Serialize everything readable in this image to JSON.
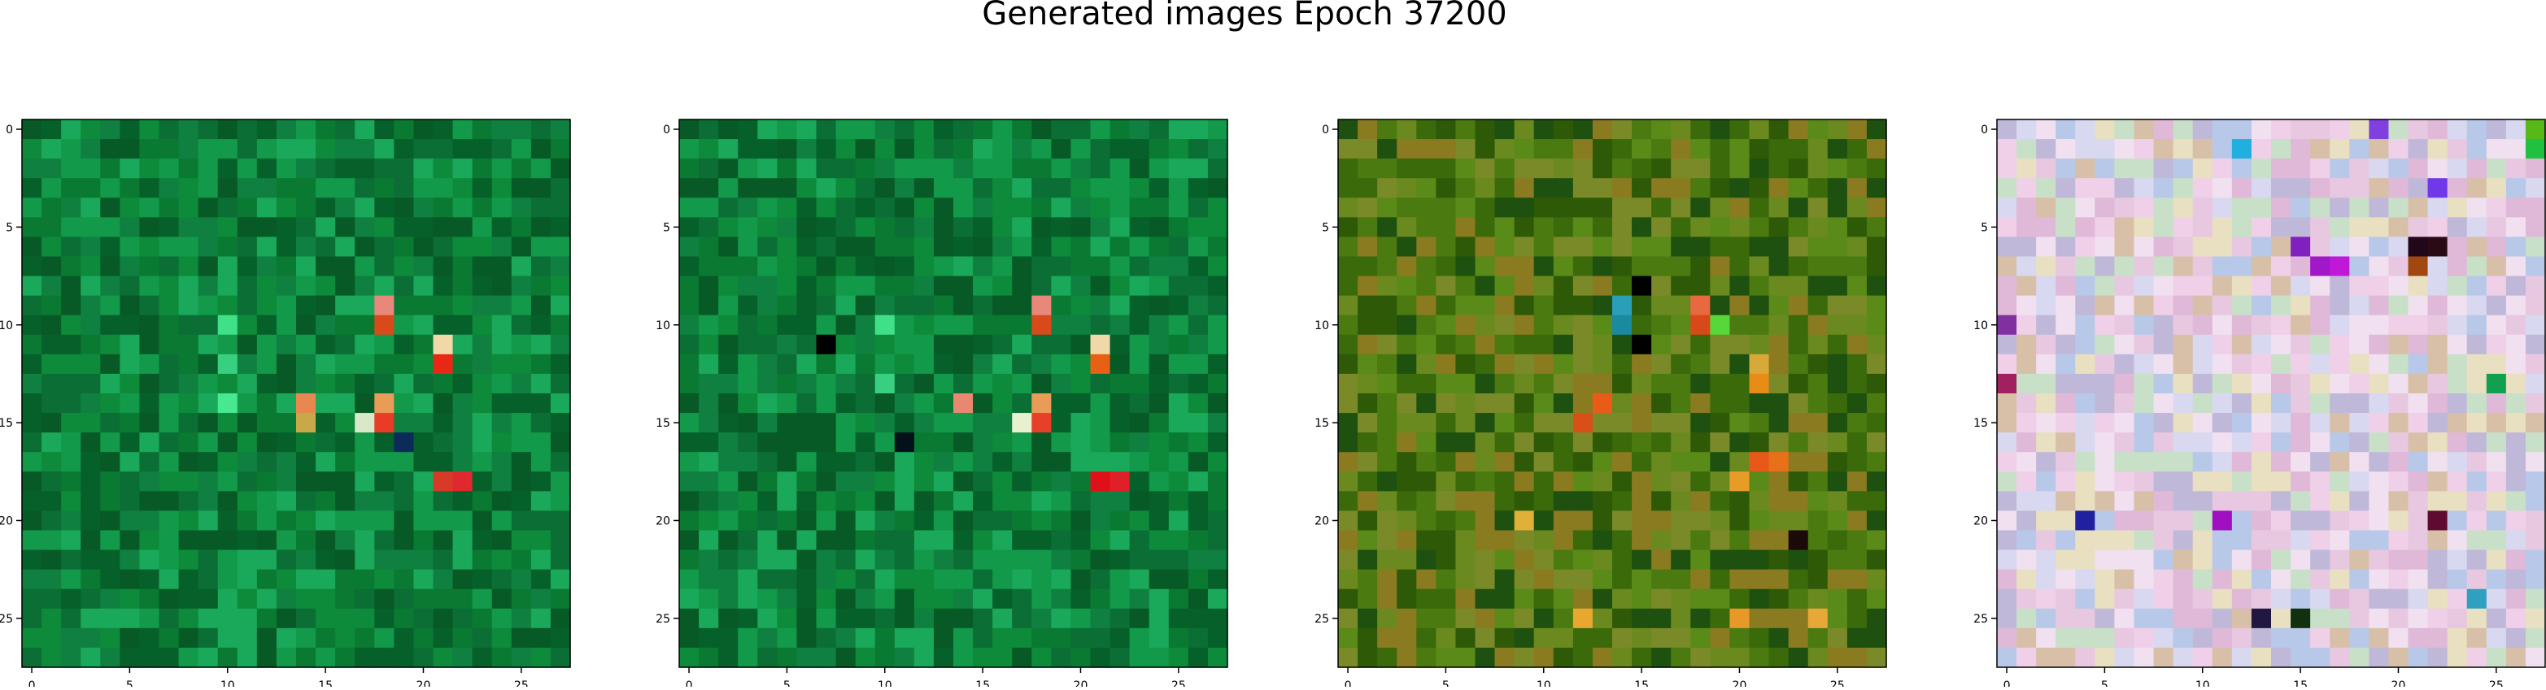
{
  "figure": {
    "title": "Generated images Epoch 37200"
  },
  "chart_data": {
    "type": "heatmap",
    "title": "Generated images Epoch 37200",
    "grid_size": 28,
    "grid": false,
    "axis_ticks": [
      0,
      5,
      10,
      15,
      20,
      25
    ],
    "xlim": [
      -0.5,
      27.5
    ],
    "ylim": [
      27.5,
      -0.5
    ],
    "panels": [
      {
        "name": "panel-1",
        "palette": [
          "#0a7a33",
          "#0d8a3a",
          "#06602a",
          "#12994a",
          "#0b6e35",
          "#1aa85a",
          "#075a25",
          "#0f8040"
        ],
        "accents": [
          {
            "row": 9,
            "col": 18,
            "color": "#e8887a"
          },
          {
            "row": 10,
            "col": 18,
            "color": "#d84a1a"
          },
          {
            "row": 11,
            "col": 21,
            "color": "#f0d8a8"
          },
          {
            "row": 12,
            "col": 21,
            "color": "#e82814"
          },
          {
            "row": 14,
            "col": 14,
            "color": "#e88850"
          },
          {
            "row": 14,
            "col": 18,
            "color": "#e89c58"
          },
          {
            "row": 15,
            "col": 14,
            "color": "#c8a848"
          },
          {
            "row": 15,
            "col": 17,
            "color": "#d8e8c8"
          },
          {
            "row": 15,
            "col": 18,
            "color": "#e83c28"
          },
          {
            "row": 18,
            "col": 21,
            "color": "#d83a28"
          },
          {
            "row": 18,
            "col": 22,
            "color": "#e02830"
          },
          {
            "row": 16,
            "col": 19,
            "color": "#0c2a5a"
          },
          {
            "row": 10,
            "col": 10,
            "color": "#40e088"
          },
          {
            "row": 12,
            "col": 10,
            "color": "#38d080"
          },
          {
            "row": 14,
            "col": 10,
            "color": "#48e890"
          }
        ]
      },
      {
        "name": "panel-2",
        "palette": [
          "#0a7a33",
          "#0d8a3a",
          "#06602a",
          "#12994a",
          "#0b6e35",
          "#1aa85a",
          "#075a25",
          "#0f8040"
        ],
        "accents": [
          {
            "row": 9,
            "col": 18,
            "color": "#e8887a"
          },
          {
            "row": 10,
            "col": 18,
            "color": "#d84a1a"
          },
          {
            "row": 11,
            "col": 21,
            "color": "#f0d8a8"
          },
          {
            "row": 12,
            "col": 21,
            "color": "#e86014"
          },
          {
            "row": 14,
            "col": 14,
            "color": "#e88870"
          },
          {
            "row": 14,
            "col": 18,
            "color": "#e89c58"
          },
          {
            "row": 15,
            "col": 17,
            "color": "#e8f0d0"
          },
          {
            "row": 15,
            "col": 18,
            "color": "#e84028"
          },
          {
            "row": 18,
            "col": 21,
            "color": "#e01018"
          },
          {
            "row": 18,
            "col": 22,
            "color": "#e02028"
          },
          {
            "row": 11,
            "col": 7,
            "color": "#000000"
          },
          {
            "row": 16,
            "col": 11,
            "color": "#04101a"
          },
          {
            "row": 10,
            "col": 10,
            "color": "#40e088"
          },
          {
            "row": 13,
            "col": 10,
            "color": "#38d080"
          }
        ]
      },
      {
        "name": "panel-3",
        "palette": [
          "#4a7a10",
          "#5a8a18",
          "#3a6a0a",
          "#6a8a20",
          "#2e5a08",
          "#7a8a28",
          "#8a7a20",
          "#1e5010"
        ],
        "accents": [
          {
            "row": 9,
            "col": 14,
            "color": "#2aa0b8"
          },
          {
            "row": 10,
            "col": 14,
            "color": "#1a8aa0"
          },
          {
            "row": 9,
            "col": 18,
            "color": "#e86840"
          },
          {
            "row": 10,
            "col": 18,
            "color": "#d84818"
          },
          {
            "row": 10,
            "col": 19,
            "color": "#58d838"
          },
          {
            "row": 13,
            "col": 21,
            "color": "#e88c18"
          },
          {
            "row": 12,
            "col": 21,
            "color": "#d8a838"
          },
          {
            "row": 14,
            "col": 13,
            "color": "#e85c18"
          },
          {
            "row": 15,
            "col": 12,
            "color": "#d85018"
          },
          {
            "row": 17,
            "col": 21,
            "color": "#e85818"
          },
          {
            "row": 17,
            "col": 22,
            "color": "#e87018"
          },
          {
            "row": 18,
            "col": 20,
            "color": "#e89c28"
          },
          {
            "row": 20,
            "col": 9,
            "color": "#e0b038"
          },
          {
            "row": 21,
            "col": 23,
            "color": "#1a0a0a"
          },
          {
            "row": 25,
            "col": 12,
            "color": "#e8a830"
          },
          {
            "row": 25,
            "col": 20,
            "color": "#e89828"
          },
          {
            "row": 25,
            "col": 24,
            "color": "#e8a838"
          },
          {
            "row": 8,
            "col": 15,
            "color": "#000000"
          },
          {
            "row": 11,
            "col": 15,
            "color": "#000000"
          }
        ]
      },
      {
        "name": "panel-4",
        "palette": [
          "#e8c8e0",
          "#d8d8f0",
          "#f0e0f0",
          "#c8e0c8",
          "#e0b8d8",
          "#d8c0a8",
          "#b8c8e8",
          "#e8e0c0",
          "#f0d0e8",
          "#c0b8d8"
        ],
        "accents": [
          {
            "row": 6,
            "col": 21,
            "color": "#200818"
          },
          {
            "row": 6,
            "col": 22,
            "color": "#2a0a14"
          },
          {
            "row": 7,
            "col": 21,
            "color": "#a04810"
          },
          {
            "row": 7,
            "col": 16,
            "color": "#a018c8"
          },
          {
            "row": 7,
            "col": 17,
            "color": "#c018d8"
          },
          {
            "row": 6,
            "col": 15,
            "color": "#8020c0"
          },
          {
            "row": 3,
            "col": 22,
            "color": "#7038e8"
          },
          {
            "row": 1,
            "col": 12,
            "color": "#20b0e0"
          },
          {
            "row": 0,
            "col": 19,
            "color": "#8040e0"
          },
          {
            "row": 0,
            "col": 27,
            "color": "#58b818"
          },
          {
            "row": 1,
            "col": 27,
            "color": "#20c040"
          },
          {
            "row": 10,
            "col": 0,
            "color": "#8030a0"
          },
          {
            "row": 13,
            "col": 0,
            "color": "#a02060"
          },
          {
            "row": 13,
            "col": 25,
            "color": "#10a050"
          },
          {
            "row": 20,
            "col": 4,
            "color": "#2020a0"
          },
          {
            "row": 20,
            "col": 11,
            "color": "#a010c0"
          },
          {
            "row": 20,
            "col": 22,
            "color": "#600a30"
          },
          {
            "row": 25,
            "col": 13,
            "color": "#201840"
          },
          {
            "row": 25,
            "col": 15,
            "color": "#103010"
          },
          {
            "row": 24,
            "col": 24,
            "color": "#30a0c0"
          }
        ]
      }
    ]
  }
}
